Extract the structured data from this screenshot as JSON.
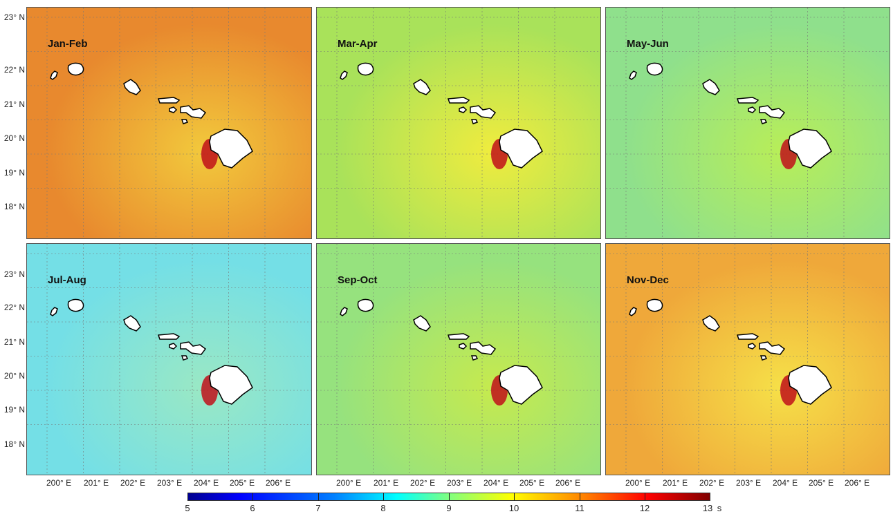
{
  "panels": [
    {
      "label": "Jan-Feb",
      "bg": "#e8892e",
      "glow": "#f2c93c"
    },
    {
      "label": "Mar-Apr",
      "bg": "#a9e25a",
      "glow": "#f0ec3e"
    },
    {
      "label": "May-Jun",
      "bg": "#8fe08c",
      "glow": "#b8ee58"
    },
    {
      "label": "Jul-Aug",
      "bg": "#74dfe6",
      "glow": "#9ae8c4"
    },
    {
      "label": "Sep-Oct",
      "bg": "#96e27e",
      "glow": "#c6ea4e"
    },
    {
      "label": "Nov-Dec",
      "bg": "#efa83a",
      "glow": "#f6e048"
    }
  ],
  "lat_labels": [
    "23° N",
    "22° N",
    "21° N",
    "20° N",
    "19° N",
    "18° N"
  ],
  "lon_labels": [
    "200° E",
    "201° E",
    "202° E",
    "203° E",
    "204° E",
    "205° E",
    "206° E"
  ],
  "colorbar": {
    "ticks": [
      "5",
      "6",
      "7",
      "8",
      "9",
      "10",
      "11",
      "12",
      "13"
    ],
    "unit": "s"
  }
}
